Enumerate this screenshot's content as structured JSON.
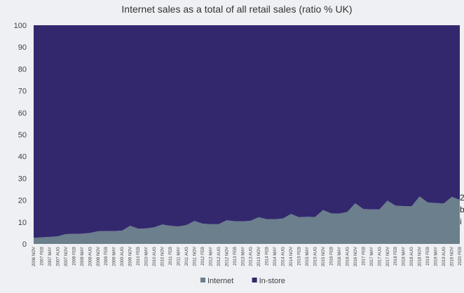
{
  "chart_data": {
    "type": "area",
    "stacked": true,
    "title": "Internet sales as a total of all retail sales (ratio % UK)",
    "ylim": [
      0,
      100
    ],
    "yticks": [
      0,
      10,
      20,
      30,
      40,
      50,
      60,
      70,
      80,
      90,
      100
    ],
    "grid": false,
    "legend_position": "bottom",
    "x_tick_labels": [
      "2006 NOV",
      "2007 FEB",
      "2007 MAY",
      "2007 AUG",
      "2007 NOV",
      "2008 FEB",
      "2008 MAY",
      "2008 AUG",
      "2008 NOV",
      "2009 FEB",
      "2009 MAY",
      "2009 AUG",
      "2009 NOV",
      "2010 FEB",
      "2010 MAY",
      "2010 AUG",
      "2010 NOV",
      "2011 FEB",
      "2011 MAY",
      "2011 AUG",
      "2011 NOV",
      "2012 FEB",
      "2012 MAY",
      "2012 AUG",
      "2012 NOV",
      "2013 FEB",
      "2013 MAY",
      "2013 AUG",
      "2013 NOV",
      "2014 FEB",
      "2014 MAY",
      "2014 AUG",
      "2014 NOV",
      "2015 FEB",
      "2015 MAY",
      "2015 AUG",
      "2015 NOV",
      "2016 FEB",
      "2016 MAY",
      "2016 AUG",
      "2016 NOV",
      "2017 FEB",
      "2017 MAY",
      "2017 AUG",
      "2017 NOV",
      "2018 FEB",
      "2018 MAY",
      "2018 AUG",
      "2018 NOV",
      "2019 FEB",
      "2019 MAY",
      "2019 AUG",
      "2019 NOV",
      "2020 FEB"
    ],
    "series": [
      {
        "name": "Internet",
        "color": "#6b7f8c",
        "values": [
          2.8,
          3.0,
          3.2,
          3.5,
          4.5,
          4.6,
          4.7,
          5.0,
          5.8,
          5.9,
          5.9,
          6.1,
          8.3,
          7.0,
          7.1,
          7.6,
          8.9,
          8.3,
          8.0,
          8.6,
          10.5,
          9.3,
          9.0,
          9.0,
          10.8,
          10.4,
          10.3,
          10.6,
          12.2,
          11.3,
          11.3,
          11.6,
          13.7,
          12.2,
          12.4,
          12.3,
          15.5,
          14.0,
          13.9,
          14.6,
          18.6,
          16.0,
          15.8,
          15.8,
          19.8,
          17.5,
          17.3,
          17.2,
          21.7,
          19.0,
          18.7,
          18.5,
          21.5,
          20.2
        ]
      },
      {
        "name": "In-store",
        "color": "#33286e",
        "values": [
          97.2,
          97.0,
          96.8,
          96.5,
          95.5,
          95.4,
          95.3,
          95.0,
          94.2,
          94.1,
          94.1,
          93.9,
          91.7,
          93.0,
          92.9,
          92.4,
          91.1,
          91.7,
          92.0,
          91.4,
          89.5,
          90.7,
          91.0,
          91.0,
          89.2,
          89.6,
          89.7,
          89.4,
          87.8,
          88.7,
          88.7,
          88.4,
          86.3,
          87.8,
          87.6,
          87.7,
          84.5,
          86.0,
          86.1,
          85.4,
          81.4,
          84.0,
          84.2,
          84.2,
          80.2,
          82.5,
          82.7,
          82.8,
          78.3,
          81.0,
          81.3,
          81.5,
          78.5,
          79.8
        ]
      }
    ]
  },
  "edge_characters": [
    "2",
    "b",
    "i"
  ]
}
